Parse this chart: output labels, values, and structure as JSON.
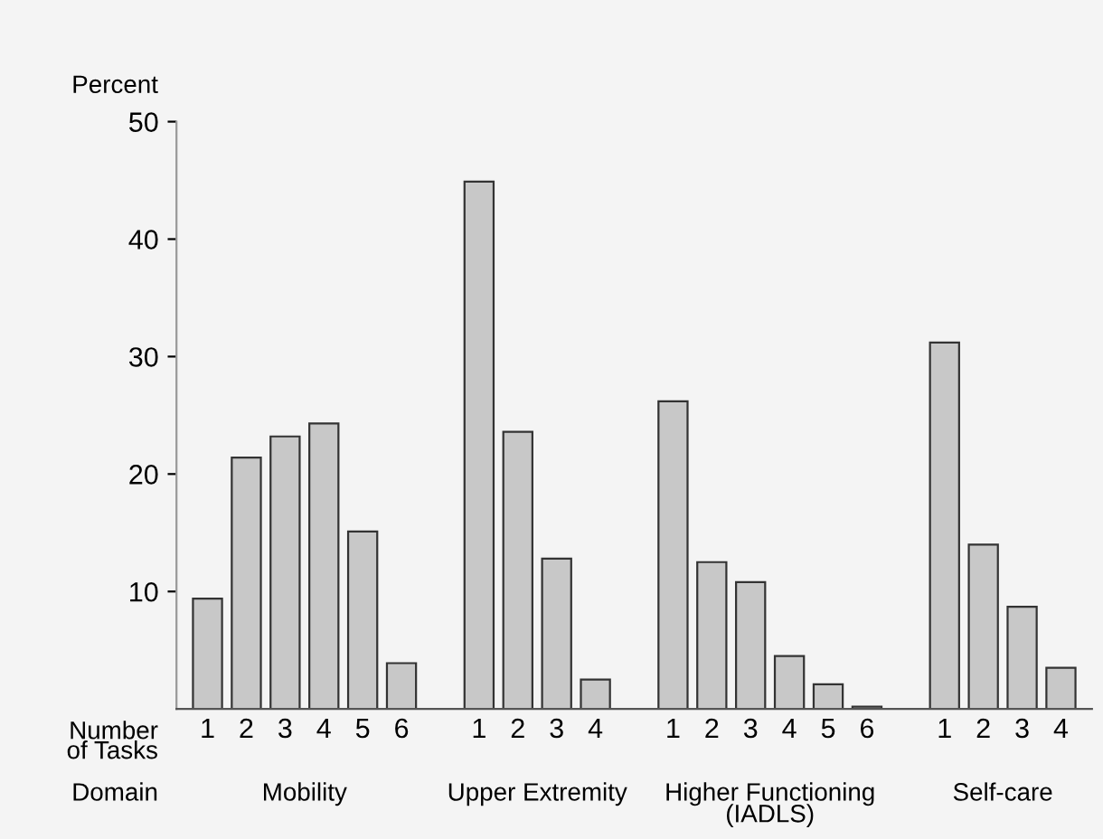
{
  "chart_data": {
    "type": "bar",
    "ylabel": "Percent",
    "categories": [
      "1",
      "2",
      "3",
      "4",
      "5",
      "6",
      null,
      "1",
      "2",
      "3",
      "4",
      null,
      "1",
      "2",
      "3",
      "4",
      "5",
      "6",
      null,
      "1",
      "2",
      "3",
      "4"
    ],
    "values": [
      9.4,
      21.4,
      23.2,
      24.3,
      15.1,
      3.9,
      null,
      44.9,
      23.6,
      12.8,
      2.5,
      null,
      26.2,
      12.5,
      10.8,
      4.5,
      2.1,
      0.2,
      null,
      31.2,
      14.0,
      8.7,
      3.5
    ],
    "color": "#c8c8c8",
    "ylim": [
      0,
      50
    ],
    "yticks": [
      10,
      20,
      30,
      40,
      50
    ],
    "grid": false,
    "legend": false,
    "annotations": [
      "Number\nof Tasks",
      "Domain",
      "Mobility",
      "Upper Extremity",
      "Higher Functioning\n(IADLS)",
      "Self-care"
    ]
  }
}
